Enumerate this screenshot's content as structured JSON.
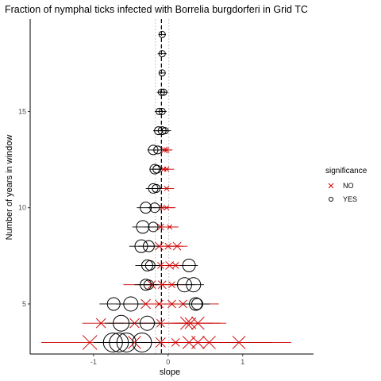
{
  "chart_data": {
    "type": "scatter",
    "title": "Fraction of nymphal ticks infected with Borrelia burgdorferi in Grid TC",
    "xlabel": "slope",
    "ylabel": "Number of years in window",
    "xlim": [
      -1.85,
      1.95
    ],
    "ylim": [
      2.4,
      19.8
    ],
    "xticks": [
      -1,
      0,
      1
    ],
    "xtick_labels": [
      "-1",
      "0",
      "1"
    ],
    "yticks": [
      5,
      10,
      15
    ],
    "ytick_labels": [
      "5",
      "10",
      "15"
    ],
    "grid": false,
    "reference_lines": {
      "mean_slope": -0.09,
      "ci": [
        -0.17,
        0.01
      ]
    },
    "legend": {
      "title": "significance",
      "position": "right",
      "entries": [
        {
          "label": "NO",
          "marker": "x",
          "color": "#cc0000"
        },
        {
          "label": "YES",
          "marker": "circle",
          "color": "#000000"
        }
      ]
    },
    "series": [
      {
        "name": "YES",
        "marker": "circle",
        "color": "#000000",
        "points": [
          {
            "x": -0.08,
            "y": 19,
            "lo": -0.13,
            "hi": -0.03,
            "r": 4
          },
          {
            "x": -0.08,
            "y": 18,
            "lo": -0.14,
            "hi": -0.02,
            "r": 4
          },
          {
            "x": -0.08,
            "y": 17,
            "lo": -0.12,
            "hi": -0.04,
            "r": 4
          },
          {
            "x": -0.09,
            "y": 16,
            "lo": -0.15,
            "hi": -0.03,
            "r": 4
          },
          {
            "x": -0.06,
            "y": 16,
            "lo": -0.12,
            "hi": 0.0,
            "r": 4
          },
          {
            "x": -0.12,
            "y": 15,
            "lo": -0.18,
            "hi": -0.04,
            "r": 4
          },
          {
            "x": -0.08,
            "y": 15,
            "lo": -0.14,
            "hi": -0.02,
            "r": 4
          },
          {
            "x": -0.13,
            "y": 14,
            "lo": -0.2,
            "hi": -0.02,
            "r": 5
          },
          {
            "x": -0.08,
            "y": 14,
            "lo": -0.16,
            "hi": 0.0,
            "r": 5
          },
          {
            "x": -0.04,
            "y": 14,
            "lo": -0.1,
            "hi": 0.04,
            "r": 4
          },
          {
            "x": -0.2,
            "y": 13,
            "lo": -0.28,
            "hi": -0.1,
            "r": 6
          },
          {
            "x": -0.14,
            "y": 13,
            "lo": -0.22,
            "hi": -0.06,
            "r": 5
          },
          {
            "x": -0.18,
            "y": 12,
            "lo": -0.25,
            "hi": -0.1,
            "r": 6
          },
          {
            "x": -0.15,
            "y": 12,
            "lo": -0.22,
            "hi": -0.08,
            "r": 5
          },
          {
            "x": -0.2,
            "y": 11,
            "lo": -0.3,
            "hi": -0.1,
            "r": 6
          },
          {
            "x": -0.16,
            "y": 11,
            "lo": -0.24,
            "hi": -0.08,
            "r": 5
          },
          {
            "x": -0.3,
            "y": 10,
            "lo": -0.42,
            "hi": -0.16,
            "r": 7
          },
          {
            "x": -0.18,
            "y": 10,
            "lo": -0.28,
            "hi": -0.08,
            "r": 6
          },
          {
            "x": -0.34,
            "y": 9,
            "lo": -0.48,
            "hi": -0.18,
            "r": 8
          },
          {
            "x": -0.2,
            "y": 9,
            "lo": -0.32,
            "hi": -0.08,
            "r": 6
          },
          {
            "x": -0.36,
            "y": 8,
            "lo": -0.52,
            "hi": -0.2,
            "r": 8
          },
          {
            "x": -0.26,
            "y": 8,
            "lo": -0.4,
            "hi": -0.12,
            "r": 7
          },
          {
            "x": -0.28,
            "y": 7,
            "lo": -0.44,
            "hi": -0.12,
            "r": 7
          },
          {
            "x": -0.24,
            "y": 7,
            "lo": -0.38,
            "hi": -0.1,
            "r": 6
          },
          {
            "x": 0.28,
            "y": 7,
            "lo": 0.15,
            "hi": 0.4,
            "r": 8
          },
          {
            "x": -0.3,
            "y": 6,
            "lo": -0.45,
            "hi": -0.15,
            "r": 7
          },
          {
            "x": -0.26,
            "y": 6,
            "lo": -0.4,
            "hi": -0.12,
            "r": 6
          },
          {
            "x": 0.22,
            "y": 6,
            "lo": 0.08,
            "hi": 0.36,
            "r": 9
          },
          {
            "x": 0.34,
            "y": 6,
            "lo": 0.2,
            "hi": 0.48,
            "r": 9
          },
          {
            "x": -0.73,
            "y": 5,
            "lo": -0.92,
            "hi": -0.55,
            "r": 8
          },
          {
            "x": -0.5,
            "y": 5,
            "lo": -0.68,
            "hi": -0.32,
            "r": 9
          },
          {
            "x": 0.37,
            "y": 5,
            "lo": 0.2,
            "hi": 0.55,
            "r": 8
          },
          {
            "x": 0.39,
            "y": 5,
            "lo": 0.22,
            "hi": 0.56,
            "r": 7
          },
          {
            "x": -0.63,
            "y": 4,
            "lo": -0.85,
            "hi": -0.42,
            "r": 10
          },
          {
            "x": -0.28,
            "y": 4,
            "lo": -0.48,
            "hi": -0.08,
            "r": 9
          },
          {
            "x": -0.74,
            "y": 3,
            "lo": -1.0,
            "hi": -0.48,
            "r": 12
          },
          {
            "x": -0.66,
            "y": 3,
            "lo": -0.92,
            "hi": -0.4,
            "r": 12
          },
          {
            "x": -0.56,
            "y": 3,
            "lo": -0.82,
            "hi": -0.3,
            "r": 12
          },
          {
            "x": -0.35,
            "y": 3,
            "lo": -0.6,
            "hi": -0.1,
            "r": 12
          }
        ]
      },
      {
        "name": "NO",
        "marker": "x",
        "color": "#cc0000",
        "points": [
          {
            "x": -0.05,
            "y": 13,
            "lo": -0.12,
            "hi": 0.05,
            "s": 4
          },
          {
            "x": -0.02,
            "y": 13,
            "lo": -0.08,
            "hi": 0.06,
            "s": 3
          },
          {
            "x": -0.06,
            "y": 12,
            "lo": -0.12,
            "hi": 0.02,
            "s": 3
          },
          {
            "x": -0.02,
            "y": 12,
            "lo": -0.08,
            "hi": 0.08,
            "s": 3
          },
          {
            "x": -0.02,
            "y": 11,
            "lo": -0.1,
            "hi": 0.08,
            "s": 3
          },
          {
            "x": -0.08,
            "y": 10,
            "lo": -0.18,
            "hi": 0.08,
            "s": 3
          },
          {
            "x": -0.02,
            "y": 10,
            "lo": -0.1,
            "hi": 0.1,
            "s": 3
          },
          {
            "x": -0.1,
            "y": 9,
            "lo": -0.22,
            "hi": 0.12,
            "s": 4
          },
          {
            "x": 0.02,
            "y": 9,
            "lo": -0.1,
            "hi": 0.14,
            "s": 3
          },
          {
            "x": -0.12,
            "y": 8,
            "lo": -0.28,
            "hi": 0.2,
            "s": 5
          },
          {
            "x": 0.0,
            "y": 8,
            "lo": -0.14,
            "hi": 0.16,
            "s": 4
          },
          {
            "x": 0.12,
            "y": 8,
            "lo": 0.0,
            "hi": 0.26,
            "s": 5
          },
          {
            "x": -0.1,
            "y": 7,
            "lo": -0.26,
            "hi": 0.12,
            "s": 4
          },
          {
            "x": 0.02,
            "y": 7,
            "lo": -0.12,
            "hi": 0.16,
            "s": 5
          },
          {
            "x": 0.1,
            "y": 7,
            "lo": -0.02,
            "hi": 0.22,
            "s": 4
          },
          {
            "x": -0.22,
            "y": 6,
            "lo": -0.6,
            "hi": 0.12,
            "s": 5
          },
          {
            "x": -0.08,
            "y": 6,
            "lo": -0.3,
            "hi": 0.14,
            "s": 5
          },
          {
            "x": 0.05,
            "y": 6,
            "lo": -0.08,
            "hi": 0.2,
            "s": 4
          },
          {
            "x": -0.3,
            "y": 5,
            "lo": -0.7,
            "hi": 0.1,
            "s": 6
          },
          {
            "x": -0.12,
            "y": 5,
            "lo": -0.4,
            "hi": 0.2,
            "s": 5
          },
          {
            "x": 0.05,
            "y": 5,
            "lo": -0.2,
            "hi": 0.35,
            "s": 5
          },
          {
            "x": 0.2,
            "y": 5,
            "lo": -0.1,
            "hi": 0.68,
            "s": 5
          },
          {
            "x": -0.9,
            "y": 4,
            "lo": -1.15,
            "hi": -0.6,
            "s": 6
          },
          {
            "x": -0.45,
            "y": 4,
            "lo": -0.8,
            "hi": -0.1,
            "s": 6
          },
          {
            "x": -0.1,
            "y": 4,
            "lo": -0.4,
            "hi": 0.25,
            "s": 5
          },
          {
            "x": 0.25,
            "y": 4,
            "lo": -0.05,
            "hi": 0.78,
            "s": 8
          },
          {
            "x": 0.3,
            "y": 4,
            "lo": 0.05,
            "hi": 0.6,
            "s": 7
          },
          {
            "x": 0.4,
            "y": 4,
            "lo": 0.1,
            "hi": 0.7,
            "s": 8
          },
          {
            "x": -1.05,
            "y": 3,
            "lo": -1.7,
            "hi": -0.4,
            "s": 9
          },
          {
            "x": -0.45,
            "y": 3,
            "lo": -0.9,
            "hi": 0.0,
            "s": 8
          },
          {
            "x": -0.1,
            "y": 3,
            "lo": -0.5,
            "hi": 0.4,
            "s": 6
          },
          {
            "x": 0.1,
            "y": 3,
            "lo": -0.3,
            "hi": 0.6,
            "s": 5
          },
          {
            "x": 0.28,
            "y": 3,
            "lo": -0.1,
            "hi": 0.8,
            "s": 8
          },
          {
            "x": 0.4,
            "y": 3,
            "lo": 0.0,
            "hi": 1.0,
            "s": 8
          },
          {
            "x": 0.55,
            "y": 3,
            "lo": 0.1,
            "hi": 1.4,
            "s": 8
          },
          {
            "x": 0.95,
            "y": 3,
            "lo": 0.3,
            "hi": 1.65,
            "s": 8
          }
        ]
      }
    ]
  }
}
